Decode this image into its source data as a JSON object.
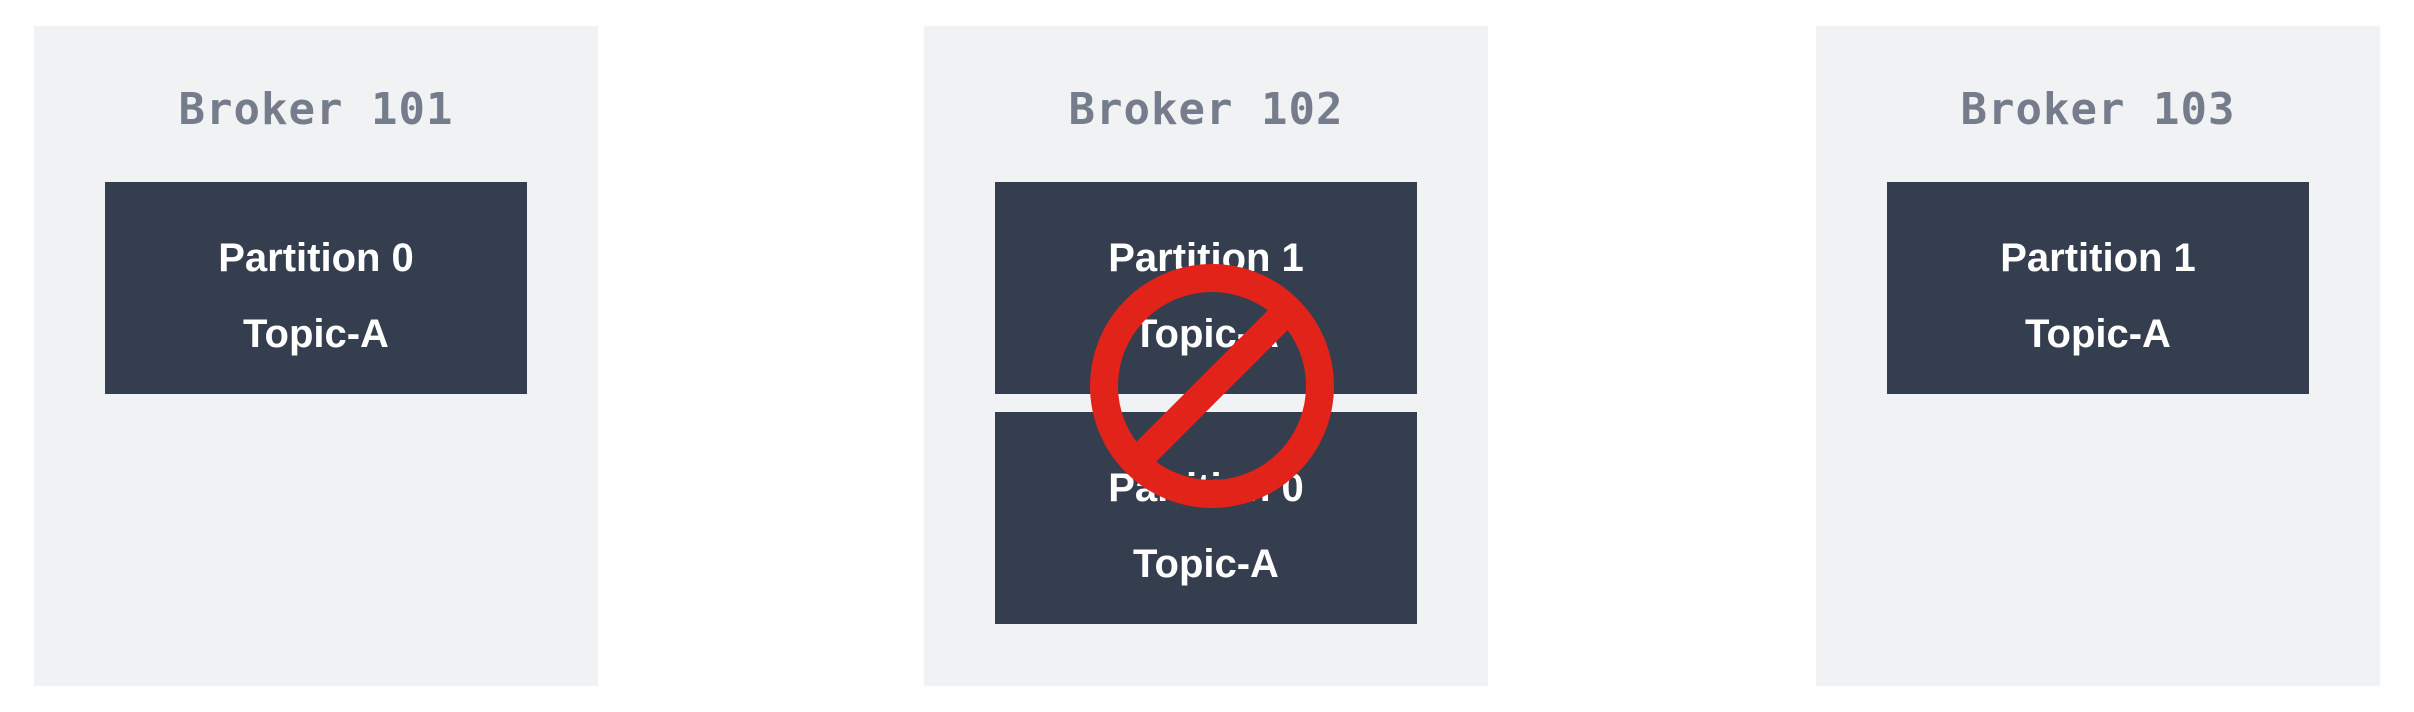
{
  "brokers": [
    {
      "title": "Broker 101",
      "partitions": [
        {
          "name": "Partition 0",
          "topic": "Topic-A"
        }
      ]
    },
    {
      "title": "Broker 102",
      "partitions": [
        {
          "name": "Partition 1",
          "topic": "Topic-A"
        },
        {
          "name": "Partition 0",
          "topic": "Topic-A"
        }
      ]
    },
    {
      "title": "Broker 103",
      "partitions": [
        {
          "name": "Partition 1",
          "topic": "Topic-A"
        }
      ]
    }
  ],
  "overlay": {
    "icon": "prohibited-icon",
    "color": "#e2231a"
  },
  "colors": {
    "broker_background": "#f1f2f4",
    "partition_background": "#353e4e",
    "broker_title": "#757c8b",
    "partition_text": "#ffffff"
  }
}
